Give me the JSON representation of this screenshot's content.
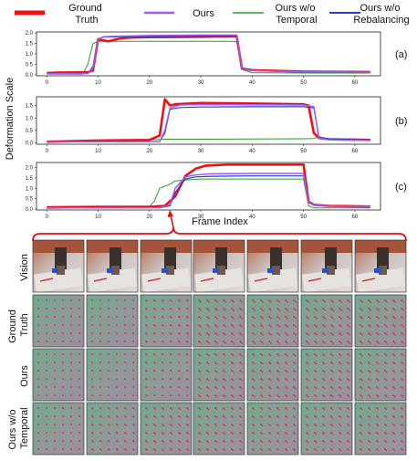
{
  "legend": [
    {
      "label": "Ground\nTruth",
      "color": "#ee1111"
    },
    {
      "label": "Ours",
      "color": "#9b5cf0"
    },
    {
      "label": "Ours w/o\nTemporal",
      "color": "#2e9a2e"
    },
    {
      "label": "Ours w/o\nRebalancing",
      "color": "#1f3fd6"
    }
  ],
  "y_axis_label": "Deformation Scale",
  "x_axis_label": "Frame Index",
  "row_labels": [
    "Vision",
    "Ground\nTruth",
    "Ours",
    "Ours w/o\nTemporal"
  ],
  "chart_data": [
    {
      "type": "line",
      "panel": "(a)",
      "xlim": [
        -2,
        65
      ],
      "ylim": [
        -0.05,
        2.05
      ],
      "xticks": [
        0,
        10,
        20,
        30,
        40,
        50,
        60
      ],
      "yticks": [
        "0.0",
        "0.5",
        "1.0",
        "1.5",
        "2.0"
      ],
      "ytick_values": [
        0,
        0.5,
        1.0,
        1.5,
        2.0
      ],
      "series": [
        {
          "name": "Ground Truth",
          "x": [
            0,
            2,
            8,
            9,
            10,
            12,
            14,
            16,
            20,
            30,
            37,
            38,
            40,
            50,
            63
          ],
          "y": [
            0.08,
            0.1,
            0.12,
            0.2,
            1.7,
            1.6,
            1.72,
            1.78,
            1.8,
            1.82,
            1.85,
            0.3,
            0.22,
            0.15,
            0.13
          ]
        },
        {
          "name": "Ours",
          "x": [
            0,
            8,
            9,
            10,
            11,
            14,
            20,
            30,
            37,
            38,
            40,
            50,
            63
          ],
          "y": [
            0.05,
            0.06,
            0.3,
            1.7,
            1.82,
            1.85,
            1.88,
            1.9,
            1.9,
            0.3,
            0.2,
            0.14,
            0.12
          ]
        },
        {
          "name": "Ours w/o Temporal",
          "x": [
            0,
            7,
            8,
            9,
            10,
            20,
            30,
            36,
            37,
            38,
            40,
            50,
            63
          ],
          "y": [
            0.03,
            0.03,
            0.5,
            1.5,
            1.6,
            1.6,
            1.6,
            1.6,
            1.58,
            0.25,
            0.1,
            0.08,
            0.08
          ]
        },
        {
          "name": "Ours w/o Rebalancing",
          "x": [
            0,
            8,
            9,
            10,
            11,
            14,
            20,
            30,
            37,
            38,
            40,
            50,
            63
          ],
          "y": [
            0.04,
            0.05,
            0.4,
            1.72,
            1.8,
            1.82,
            1.83,
            1.84,
            1.85,
            0.28,
            0.2,
            0.14,
            0.12
          ]
        }
      ]
    },
    {
      "type": "line",
      "panel": "(b)",
      "xlim": [
        -2,
        65
      ],
      "ylim": [
        -0.05,
        1.85
      ],
      "xticks": [
        0,
        10,
        20,
        30,
        40,
        50,
        60
      ],
      "yticks": [
        "0.0",
        "0.5",
        "1.0",
        "1.5"
      ],
      "ytick_values": [
        0,
        0.5,
        1.0,
        1.5
      ],
      "series": [
        {
          "name": "Ground Truth",
          "x": [
            0,
            10,
            20,
            22,
            23,
            24,
            25,
            28,
            30,
            40,
            50,
            51,
            52,
            53,
            55,
            63
          ],
          "y": [
            0.05,
            0.1,
            0.12,
            0.3,
            1.75,
            1.5,
            1.55,
            1.58,
            1.6,
            1.58,
            1.55,
            1.5,
            0.4,
            0.2,
            0.15,
            0.12
          ]
        },
        {
          "name": "Ours",
          "x": [
            0,
            10,
            22,
            23,
            24,
            26,
            30,
            40,
            50,
            52,
            53,
            55,
            63
          ],
          "y": [
            0.04,
            0.05,
            0.06,
            0.5,
            1.4,
            1.52,
            1.54,
            1.53,
            1.52,
            1.45,
            0.2,
            0.12,
            0.1
          ]
        },
        {
          "name": "Ours w/o Temporal",
          "x": [
            0,
            10,
            20,
            23,
            30,
            40,
            50,
            52,
            53,
            55,
            63
          ],
          "y": [
            0.06,
            0.1,
            0.12,
            0.15,
            0.15,
            0.16,
            0.17,
            0.18,
            0.25,
            0.12,
            0.12
          ]
        },
        {
          "name": "Ours w/o Rebalancing",
          "x": [
            0,
            10,
            22,
            23,
            24,
            26,
            30,
            40,
            50,
            52,
            53,
            55,
            63
          ],
          "y": [
            0.04,
            0.05,
            0.06,
            0.4,
            1.35,
            1.42,
            1.44,
            1.45,
            1.45,
            1.4,
            0.25,
            0.15,
            0.12
          ]
        }
      ]
    },
    {
      "type": "line",
      "panel": "(c)",
      "xlim": [
        -2,
        65
      ],
      "ylim": [
        -0.05,
        2.25
      ],
      "xticks": [
        0,
        10,
        20,
        30,
        40,
        50,
        60
      ],
      "yticks": [
        "0.0",
        "0.5",
        "1.0",
        "1.5",
        "2.0"
      ],
      "ytick_values": [
        0,
        0.5,
        1.0,
        1.5,
        2.0
      ],
      "series": [
        {
          "name": "Ground Truth",
          "x": [
            0,
            10,
            20,
            23,
            25,
            27,
            29,
            31,
            35,
            40,
            45,
            50,
            51,
            52,
            55,
            63
          ],
          "y": [
            0.08,
            0.1,
            0.1,
            0.15,
            0.6,
            1.6,
            1.95,
            2.1,
            2.15,
            2.15,
            2.15,
            2.15,
            0.35,
            0.2,
            0.15,
            0.12
          ]
        },
        {
          "name": "Ours",
          "x": [
            0,
            10,
            22,
            24,
            25,
            27,
            29,
            32,
            40,
            50,
            51,
            52,
            55,
            63
          ],
          "y": [
            0.05,
            0.05,
            0.06,
            0.2,
            1.0,
            1.55,
            1.65,
            1.7,
            1.72,
            1.72,
            0.3,
            0.2,
            0.15,
            0.12
          ]
        },
        {
          "name": "Ours w/o Temporal",
          "x": [
            0,
            10,
            20,
            21,
            22,
            23,
            24,
            25,
            27,
            30,
            40,
            50,
            51,
            52,
            55,
            63
          ],
          "y": [
            0.03,
            0.05,
            0.1,
            0.4,
            1.0,
            1.1,
            1.2,
            1.35,
            1.4,
            1.45,
            1.45,
            1.45,
            0.15,
            0.05,
            0.05,
            0.05
          ]
        },
        {
          "name": "Ours w/o Rebalancing",
          "x": [
            0,
            10,
            22,
            24,
            25,
            27,
            29,
            32,
            40,
            50,
            51,
            52,
            55,
            63
          ],
          "y": [
            0.04,
            0.05,
            0.06,
            0.15,
            0.8,
            1.45,
            1.55,
            1.58,
            1.6,
            1.6,
            0.3,
            0.2,
            0.15,
            0.12
          ]
        }
      ]
    }
  ]
}
